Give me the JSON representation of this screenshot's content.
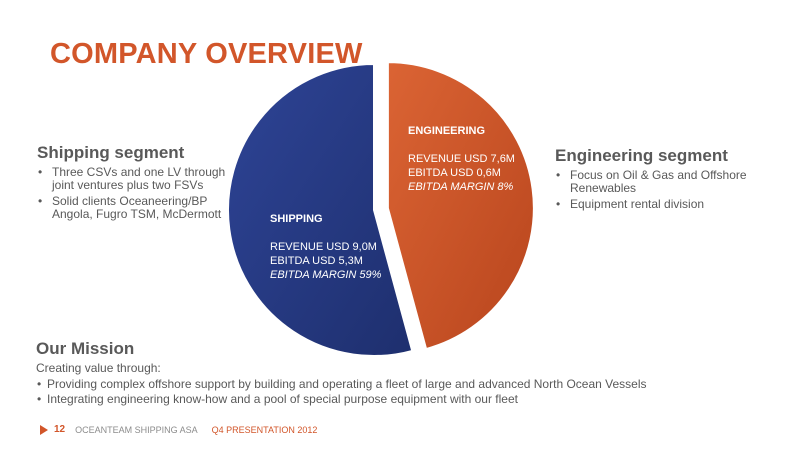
{
  "title": "COMPANY OVERVIEW",
  "shipping_segment": {
    "title": "Shipping segment",
    "bullets": [
      "Three CSVs and one LV through joint ventures plus two FSVs",
      "Solid clients Oceaneering/BP Angola, Fugro TSM, McDermott"
    ]
  },
  "engineering_segment": {
    "title": "Engineering segment",
    "bullets": [
      "Focus on Oil & Gas and Offshore Renewables",
      "Equipment rental division"
    ]
  },
  "mission": {
    "title": "Our Mission",
    "intro": "Creating value through:",
    "bullets": [
      "Providing complex offshore support by building and operating a fleet of large and advanced North Ocean Vessels",
      "Integrating engineering know-how and a pool of special purpose equipment with our fleet"
    ]
  },
  "chart_data": {
    "type": "pie",
    "title": "",
    "slices": [
      {
        "name": "ENGINEERING",
        "value": 7.6,
        "color": "#d2562a",
        "lines": [
          "REVENUE USD 7,6M",
          "EBITDA USD 0,6M",
          "EBITDA MARGIN 8%"
        ]
      },
      {
        "name": "SHIPPING",
        "value": 9.0,
        "color": "#2b3f8c",
        "lines": [
          "REVENUE USD 9,0M",
          "EBITDA USD 5,3M",
          "EBITDA MARGIN 59%"
        ]
      }
    ]
  },
  "footer": {
    "page": "12",
    "company": "OCEANTEAM SHIPPING ASA",
    "presentation": "Q4 PRESENTATION 2012"
  }
}
